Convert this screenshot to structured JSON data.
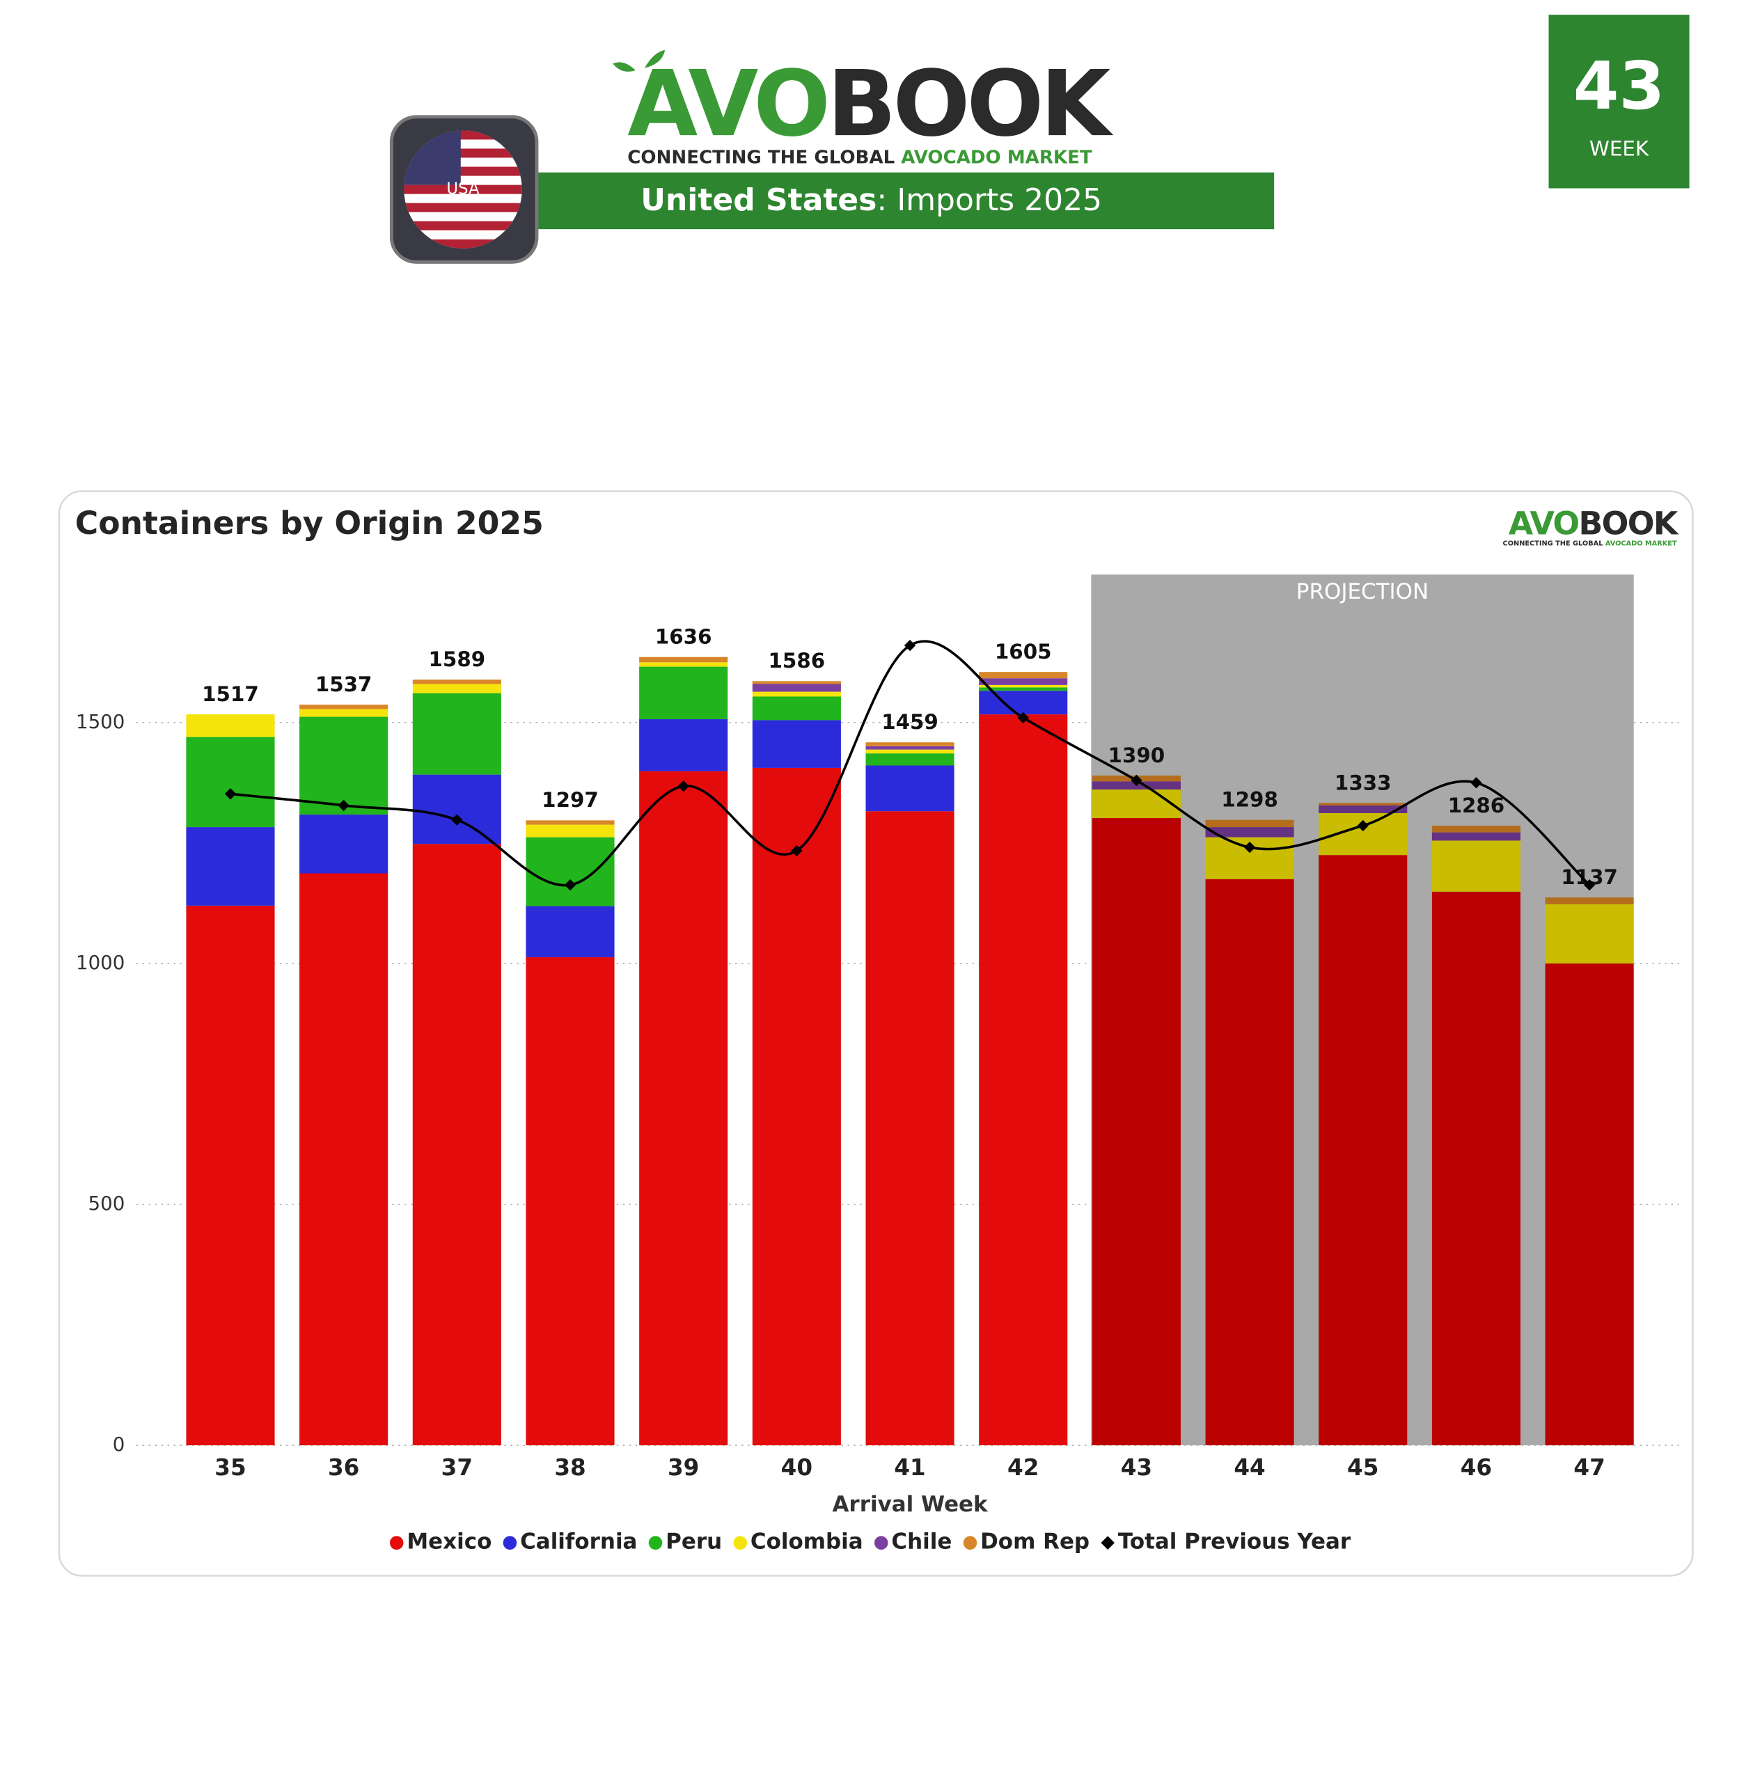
{
  "header": {
    "logo_green": "AVO",
    "logo_dark": "BOOK",
    "tagline_start": "CONNECTING THE GLOBAL ",
    "tagline_end": "AVOCADO MARKET",
    "country": "United States",
    "subtitle": ": Imports 2025",
    "flag_label": "USA",
    "week_number": "43",
    "week_label": "WEEK"
  },
  "chart_data": {
    "type": "stacked_bar",
    "title": "Containers by Origin 2025",
    "x_label": "Arrival Week",
    "categories": [
      "35",
      "36",
      "37",
      "38",
      "39",
      "40",
      "41",
      "42",
      "43",
      "44",
      "45",
      "46",
      "47"
    ],
    "series": [
      {
        "name": "Mexico",
        "color": "#e30b0b",
        "values": [
          1120,
          1187,
          1248,
          1013,
          1399,
          1406,
          1316,
          1517,
          1302,
          1175,
          1225,
          1149,
          1000
        ]
      },
      {
        "name": "California",
        "color": "#2b2bd9",
        "values": [
          163,
          122,
          144,
          106,
          108,
          99,
          95,
          49,
          0,
          0,
          0,
          0,
          0
        ]
      },
      {
        "name": "Peru",
        "color": "#22b41c",
        "values": [
          187,
          203,
          169,
          143,
          109,
          49,
          25,
          7,
          0,
          0,
          0,
          0,
          0
        ]
      },
      {
        "name": "Colombia",
        "color": "#f5e40c",
        "values": [
          47,
          16,
          19,
          26,
          9,
          10,
          8,
          5,
          59,
          87,
          87,
          106,
          123
        ]
      },
      {
        "name": "Chile",
        "color": "#7b3fa0",
        "values": [
          0,
          0,
          0,
          0,
          0,
          16,
          7,
          14,
          17,
          21,
          16,
          17,
          0
        ]
      },
      {
        "name": "Dom Rep",
        "color": "#d9862a",
        "values": [
          0,
          9,
          9,
          9,
          11,
          6,
          8,
          13,
          12,
          15,
          5,
          14,
          14
        ]
      },
      {
        "name": "Total Previous Year",
        "type": "line",
        "color": "#000000",
        "values": [
          1352,
          1328,
          1298,
          1163,
          1368,
          1234,
          1660,
          1510,
          1380,
          1241,
          1286,
          1375,
          1163
        ]
      }
    ],
    "totals": [
      1517,
      1537,
      1589,
      1297,
      1636,
      1586,
      1459,
      1605,
      1390,
      1298,
      1333,
      1286,
      1137
    ],
    "projection": {
      "label": "PROJECTION",
      "start": "43"
    },
    "ylim": [
      0,
      1800
    ],
    "yticks": [
      0,
      500,
      1000,
      1500
    ],
    "grid": true,
    "legend": "bottom"
  }
}
